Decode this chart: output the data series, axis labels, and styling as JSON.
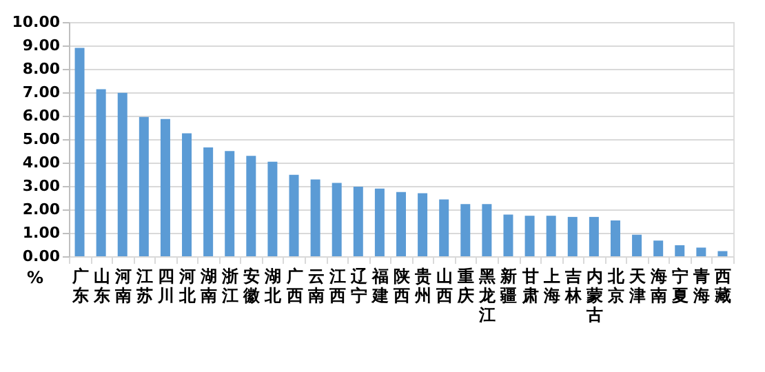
{
  "chart_data": {
    "type": "bar",
    "ylabel": "%",
    "categories": [
      "广东",
      "山东",
      "河南",
      "江苏",
      "四川",
      "河北",
      "湖南",
      "浙江",
      "安徽",
      "湖北",
      "广西",
      "云南",
      "江西",
      "辽宁",
      "福建",
      "陕西",
      "贵州",
      "山西",
      "重庆",
      "黑龙江",
      "新疆",
      "甘肃",
      "上海",
      "吉林",
      "内蒙古",
      "北京",
      "天津",
      "海南",
      "宁夏",
      "青海",
      "西藏"
    ],
    "values": [
      8.9,
      7.13,
      6.98,
      5.95,
      5.86,
      5.25,
      4.65,
      4.49,
      4.29,
      4.04,
      3.48,
      3.28,
      3.13,
      2.97,
      2.89,
      2.74,
      2.69,
      2.43,
      2.23,
      2.23,
      1.78,
      1.73,
      1.73,
      1.68,
      1.68,
      1.53,
      0.92,
      0.67,
      0.47,
      0.37,
      0.22
    ],
    "color": "#5b9bd5",
    "ylim": [
      0,
      10
    ],
    "yticks": [
      {
        "value": 0,
        "label": "0.00"
      },
      {
        "value": 1,
        "label": "1.00"
      },
      {
        "value": 2,
        "label": "2.00"
      },
      {
        "value": 3,
        "label": "3.00"
      },
      {
        "value": 4,
        "label": "4.00"
      },
      {
        "value": 5,
        "label": "5.00"
      },
      {
        "value": 6,
        "label": "6.00"
      },
      {
        "value": 7,
        "label": "7.00"
      },
      {
        "value": 8,
        "label": "8.00"
      },
      {
        "value": 9,
        "label": "9.00"
      },
      {
        "value": 10,
        "label": "10.00"
      }
    ],
    "grid": "y"
  }
}
